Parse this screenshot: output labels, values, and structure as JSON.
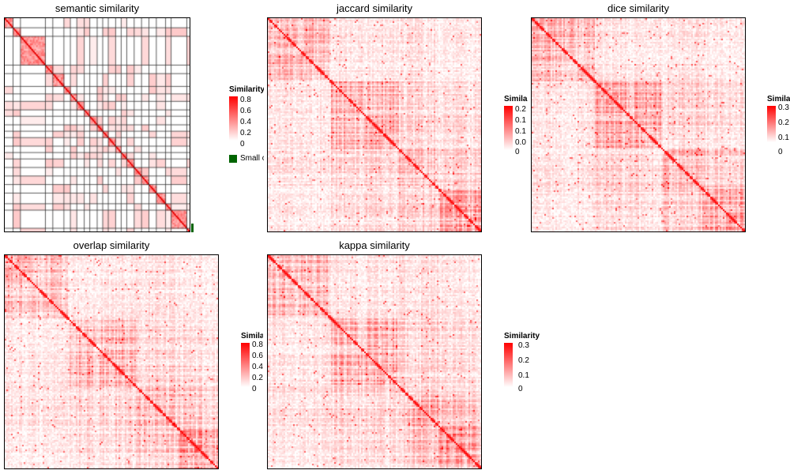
{
  "chart_data": [
    {
      "type": "heatmap",
      "title": "semantic similarity",
      "legend": {
        "title": "Similarity",
        "ticks": [
          "0.8",
          "0.6",
          "0.4",
          "0.2",
          "0"
        ],
        "range": [
          0,
          0.8
        ],
        "extra_entry": "Small clusters",
        "extra_color": "#006400"
      },
      "pattern": "block-clusters",
      "seed": 1
    },
    {
      "type": "heatmap",
      "title": "jaccard similarity",
      "legend": {
        "title": "Similarity",
        "ticks": [
          "0.2",
          "0.1",
          "0.1",
          "0.0",
          "0"
        ],
        "range": [
          0,
          0.25
        ]
      },
      "pattern": "dense",
      "seed": 2
    },
    {
      "type": "heatmap",
      "title": "dice similarity",
      "legend": {
        "title": "Similarity",
        "ticks": [
          "0.3",
          "0.2",
          "0.1",
          "0"
        ],
        "range": [
          0,
          0.35
        ]
      },
      "pattern": "dense",
      "seed": 3
    },
    {
      "type": "heatmap",
      "title": "overlap similarity",
      "legend": {
        "title": "Similarity",
        "ticks": [
          "0.8",
          "0.6",
          "0.4",
          "0.2",
          "0"
        ],
        "range": [
          0,
          0.9
        ]
      },
      "pattern": "dense",
      "seed": 4
    },
    {
      "type": "heatmap",
      "title": "kappa similarity",
      "legend": {
        "title": "Similarity",
        "ticks": [
          "0.3",
          "0.2",
          "0.1",
          "0"
        ],
        "range": [
          0,
          0.3
        ]
      },
      "pattern": "dense",
      "seed": 5
    }
  ],
  "colors": {
    "high": "#ff0000",
    "low": "#ffffff",
    "small_clusters": "#006400"
  }
}
